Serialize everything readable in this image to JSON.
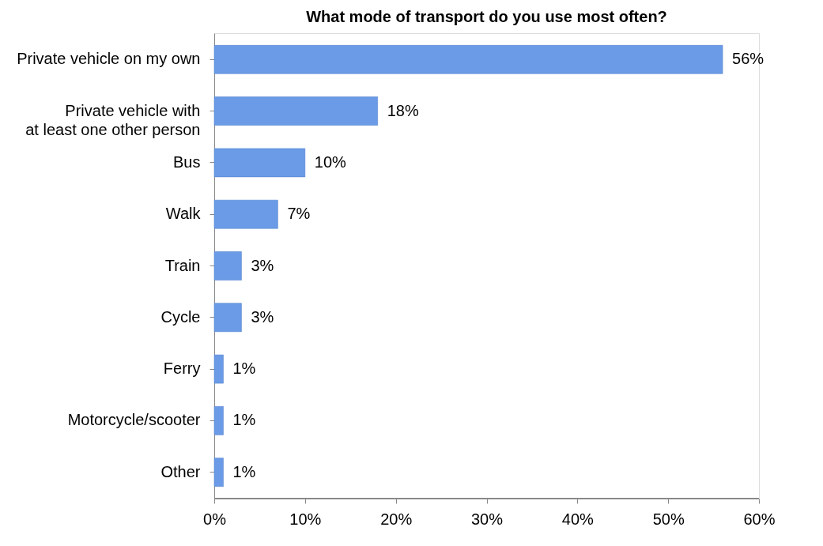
{
  "chart_data": {
    "type": "bar",
    "orientation": "horizontal",
    "title": "What mode of transport do you use most often?",
    "categories": [
      "Private vehicle on my own",
      "Private vehicle with\nat least one other person",
      "Bus",
      "Walk",
      "Train",
      "Cycle",
      "Ferry",
      "Motorcycle/scooter",
      "Other"
    ],
    "values": [
      56,
      18,
      10,
      7,
      3,
      3,
      1,
      1,
      1
    ],
    "value_labels": [
      "56%",
      "18%",
      "10%",
      "7%",
      "3%",
      "3%",
      "1%",
      "1%",
      "1%"
    ],
    "color": "#6b9be6",
    "xlim": [
      0,
      60
    ],
    "xticks": [
      {
        "value": 0,
        "label": "0%"
      },
      {
        "value": 10,
        "label": "10%"
      },
      {
        "value": 20,
        "label": "20%"
      },
      {
        "value": 30,
        "label": "30%"
      },
      {
        "value": 40,
        "label": "40%"
      },
      {
        "value": 50,
        "label": "50%"
      },
      {
        "value": 60,
        "label": "60%"
      }
    ],
    "grid": false
  }
}
